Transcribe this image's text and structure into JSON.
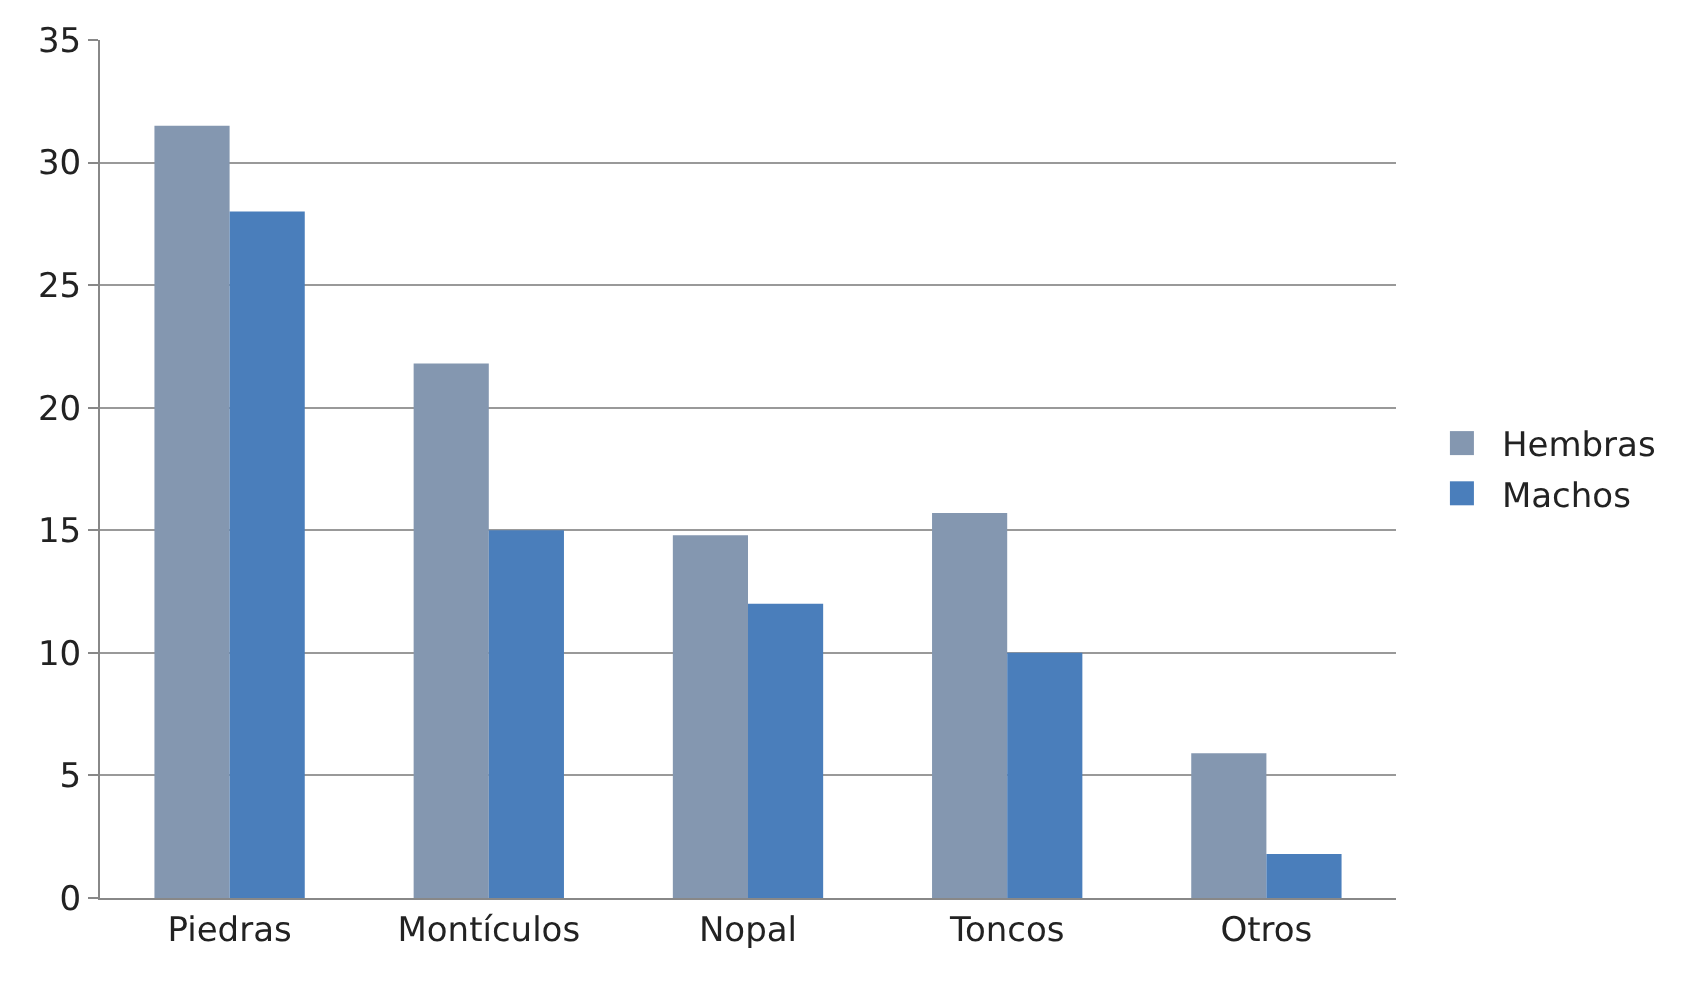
{
  "chart_data": {
    "type": "bar",
    "categories": [
      "Piedras",
      "Montículos",
      "Nopal",
      "Toncos",
      "Otros"
    ],
    "series": [
      {
        "name": "Hembras",
        "color": "#8497b0",
        "values": [
          31.5,
          21.8,
          14.8,
          15.7,
          5.9
        ]
      },
      {
        "name": "Machos",
        "color": "#4a7ebb",
        "values": [
          28,
          15,
          12,
          10,
          1.8
        ]
      }
    ],
    "ylim": [
      0,
      35
    ],
    "yticks": [
      0,
      5,
      10,
      15,
      20,
      25,
      30,
      35
    ],
    "grid": "y",
    "legend": "right"
  }
}
